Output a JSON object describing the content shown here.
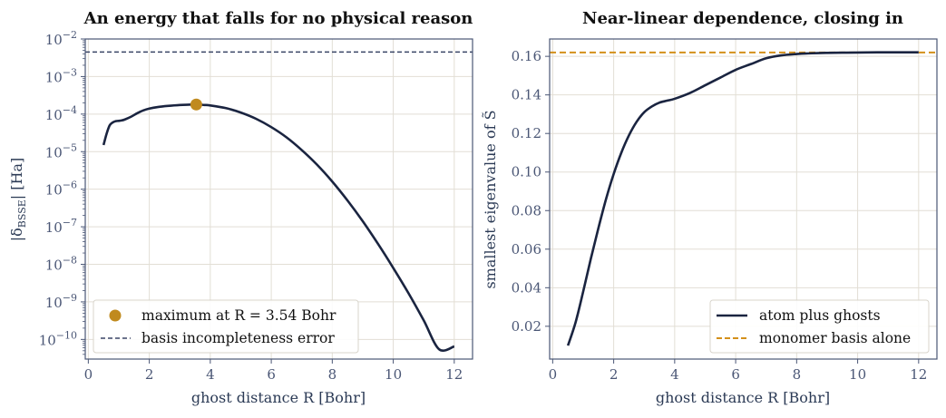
{
  "chart_data": [
    {
      "type": "line",
      "title": "An energy that falls for no physical reason",
      "xlabel": "ghost distance R [Bohr]",
      "ylabel": "|δBSSE| [Ha]",
      "yscale": "log",
      "xlim": [
        -0.1,
        12.6
      ],
      "ylim": [
        3e-11,
        0.01
      ],
      "xticks": [
        0,
        2,
        4,
        6,
        8,
        10,
        12
      ],
      "yticks_exp": [
        -10,
        -9,
        -8,
        -7,
        -6,
        -5,
        -4,
        -3,
        -2
      ],
      "grid": true,
      "legend_position": "lower-left",
      "series": [
        {
          "role": "curve",
          "color": "#1a2440",
          "x": [
            0.5,
            0.6,
            0.7,
            0.8,
            0.9,
            1.0,
            1.1,
            1.2,
            1.4,
            1.6,
            1.8,
            2.0,
            2.3,
            2.6,
            3.0,
            3.3,
            3.54,
            3.8,
            4.0,
            4.5,
            5.0,
            5.5,
            6.0,
            6.5,
            7.0,
            7.5,
            8.0,
            8.5,
            9.0,
            9.5,
            10.0,
            10.5,
            11.0,
            11.5,
            12.0
          ],
          "y": [
            1.5e-05,
            3e-05,
            5e-05,
            6e-05,
            6.5e-05,
            6.6e-05,
            6.8e-05,
            7.2e-05,
            8.5e-05,
            0.000105,
            0.000125,
            0.00014,
            0.000155,
            0.000165,
            0.000175,
            0.000178,
            0.00018,
            0.000175,
            0.00017,
            0.000145,
            0.00011,
            7.5e-05,
            4.5e-05,
            2.4e-05,
            1.1e-05,
            4.5e-06,
            1.6e-06,
            5e-07,
            1.4e-07,
            3.5e-08,
            8e-09,
            1.7e-09,
            3.2e-10,
            5.5e-11,
            6.5e-11
          ]
        },
        {
          "name": "maximum at R = 3.54 Bohr",
          "role": "marker",
          "color": "#c08a1e",
          "x": [
            3.54
          ],
          "y": [
            0.00018
          ]
        },
        {
          "name": "basis incompleteness error",
          "role": "hline",
          "color": "#3a4566",
          "y": 0.0045
        }
      ]
    },
    {
      "type": "line",
      "title": "Near-linear dependence, closing in",
      "xlabel": "ghost distance R [Bohr]",
      "ylabel": "smallest eigenvalue of S̃",
      "xlim": [
        -0.1,
        12.6
      ],
      "ylim": [
        0.003,
        0.169
      ],
      "xticks": [
        0,
        2,
        4,
        6,
        8,
        10,
        12
      ],
      "yticks": [
        0.02,
        0.04,
        0.06,
        0.08,
        0.1,
        0.12,
        0.14,
        0.16
      ],
      "grid": true,
      "legend_position": "lower-right",
      "series": [
        {
          "name": "atom plus ghosts",
          "role": "curve",
          "color": "#1a2440",
          "x": [
            0.5,
            0.75,
            1.0,
            1.25,
            1.5,
            1.75,
            2.0,
            2.25,
            2.5,
            2.75,
            3.0,
            3.25,
            3.5,
            3.75,
            4.0,
            4.5,
            5.0,
            5.5,
            6.0,
            6.5,
            7.0,
            7.5,
            8.0,
            8.5,
            9.0,
            9.5,
            10.0,
            11.0,
            12.0
          ],
          "y": [
            0.01,
            0.022,
            0.038,
            0.055,
            0.071,
            0.086,
            0.099,
            0.11,
            0.119,
            0.126,
            0.131,
            0.134,
            0.136,
            0.137,
            0.138,
            0.141,
            0.145,
            0.149,
            0.153,
            0.156,
            0.159,
            0.1605,
            0.1612,
            0.1616,
            0.1618,
            0.1619,
            0.162,
            0.1621,
            0.1621
          ]
        },
        {
          "name": "monomer basis alone",
          "role": "hline",
          "color": "#d4901a",
          "y": 0.162
        }
      ]
    }
  ]
}
